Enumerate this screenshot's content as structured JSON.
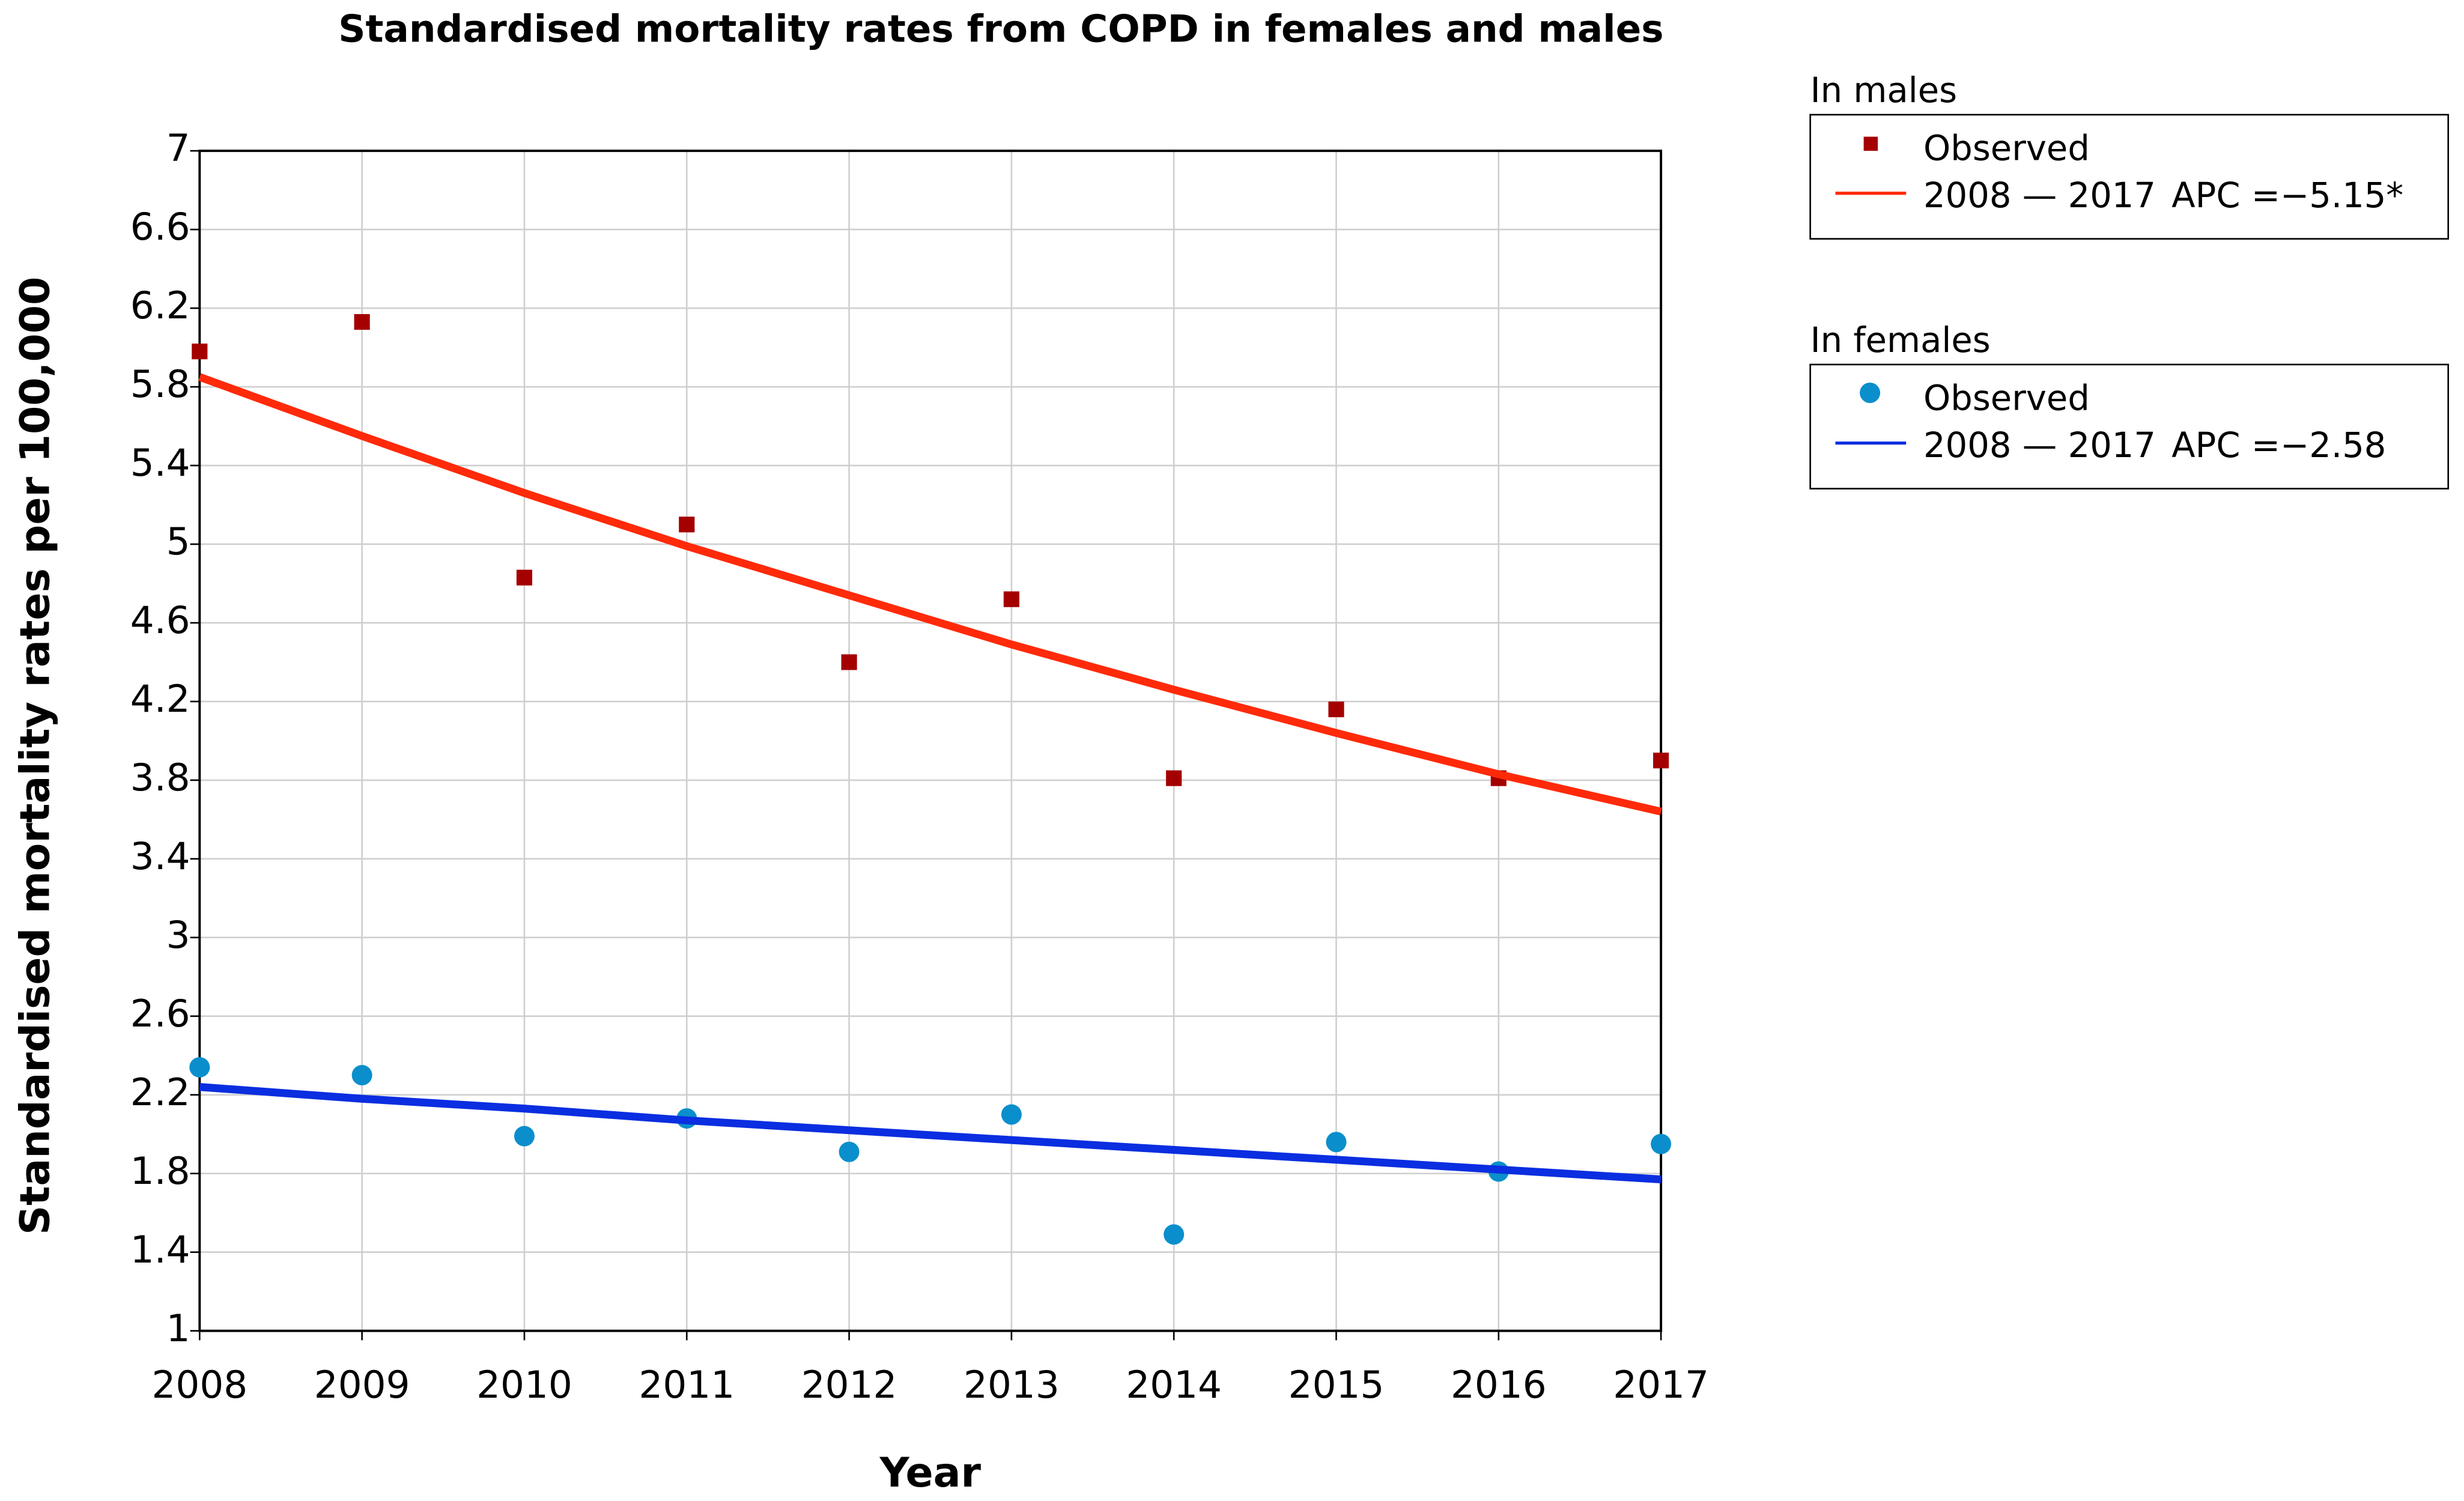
{
  "chart_data": {
    "type": "line",
    "title": "Standardised mortality rates from COPD in females and males",
    "x_label": "Year",
    "y_label": "Standardised mortality rates per 100,000",
    "x": [
      2008,
      2009,
      2010,
      2011,
      2012,
      2013,
      2014,
      2015,
      2016,
      2017
    ],
    "xlim": [
      2008,
      2017
    ],
    "xticks": [
      2008,
      2009,
      2010,
      2011,
      2012,
      2013,
      2014,
      2015,
      2016,
      2017
    ],
    "ylim": [
      1,
      7
    ],
    "yticks": [
      1,
      1.4,
      1.8,
      2.2,
      2.6,
      3,
      3.4,
      3.8,
      4.2,
      4.6,
      5,
      5.4,
      5.8,
      6.2,
      6.6,
      7
    ],
    "grid": true,
    "series": [
      {
        "group": "In males",
        "name": "Observed",
        "mode": "square",
        "color": "#a50000",
        "values": [
          5.98,
          6.13,
          4.83,
          5.1,
          4.4,
          4.72,
          3.81,
          4.16,
          3.81,
          3.9
        ]
      },
      {
        "group": "In males",
        "name": "2008 — 2017",
        "apc": "APC  =−5.15*",
        "mode": "line",
        "color": "#ff2a0a",
        "values": [
          5.85,
          5.55,
          5.26,
          4.99,
          4.74,
          4.49,
          4.26,
          4.04,
          3.83,
          3.64
        ]
      },
      {
        "group": "In females",
        "name": "Observed",
        "mode": "circle",
        "color": "#0a8fcc",
        "values": [
          2.34,
          2.3,
          1.99,
          2.08,
          1.91,
          2.1,
          1.49,
          1.96,
          1.81,
          1.95
        ]
      },
      {
        "group": "In females",
        "name": "2008 — 2017",
        "apc": "APC  =−2.58",
        "mode": "line",
        "color": "#0a2ee0",
        "values": [
          2.24,
          2.18,
          2.13,
          2.07,
          2.02,
          1.97,
          1.92,
          1.87,
          1.82,
          1.77
        ]
      }
    ]
  }
}
